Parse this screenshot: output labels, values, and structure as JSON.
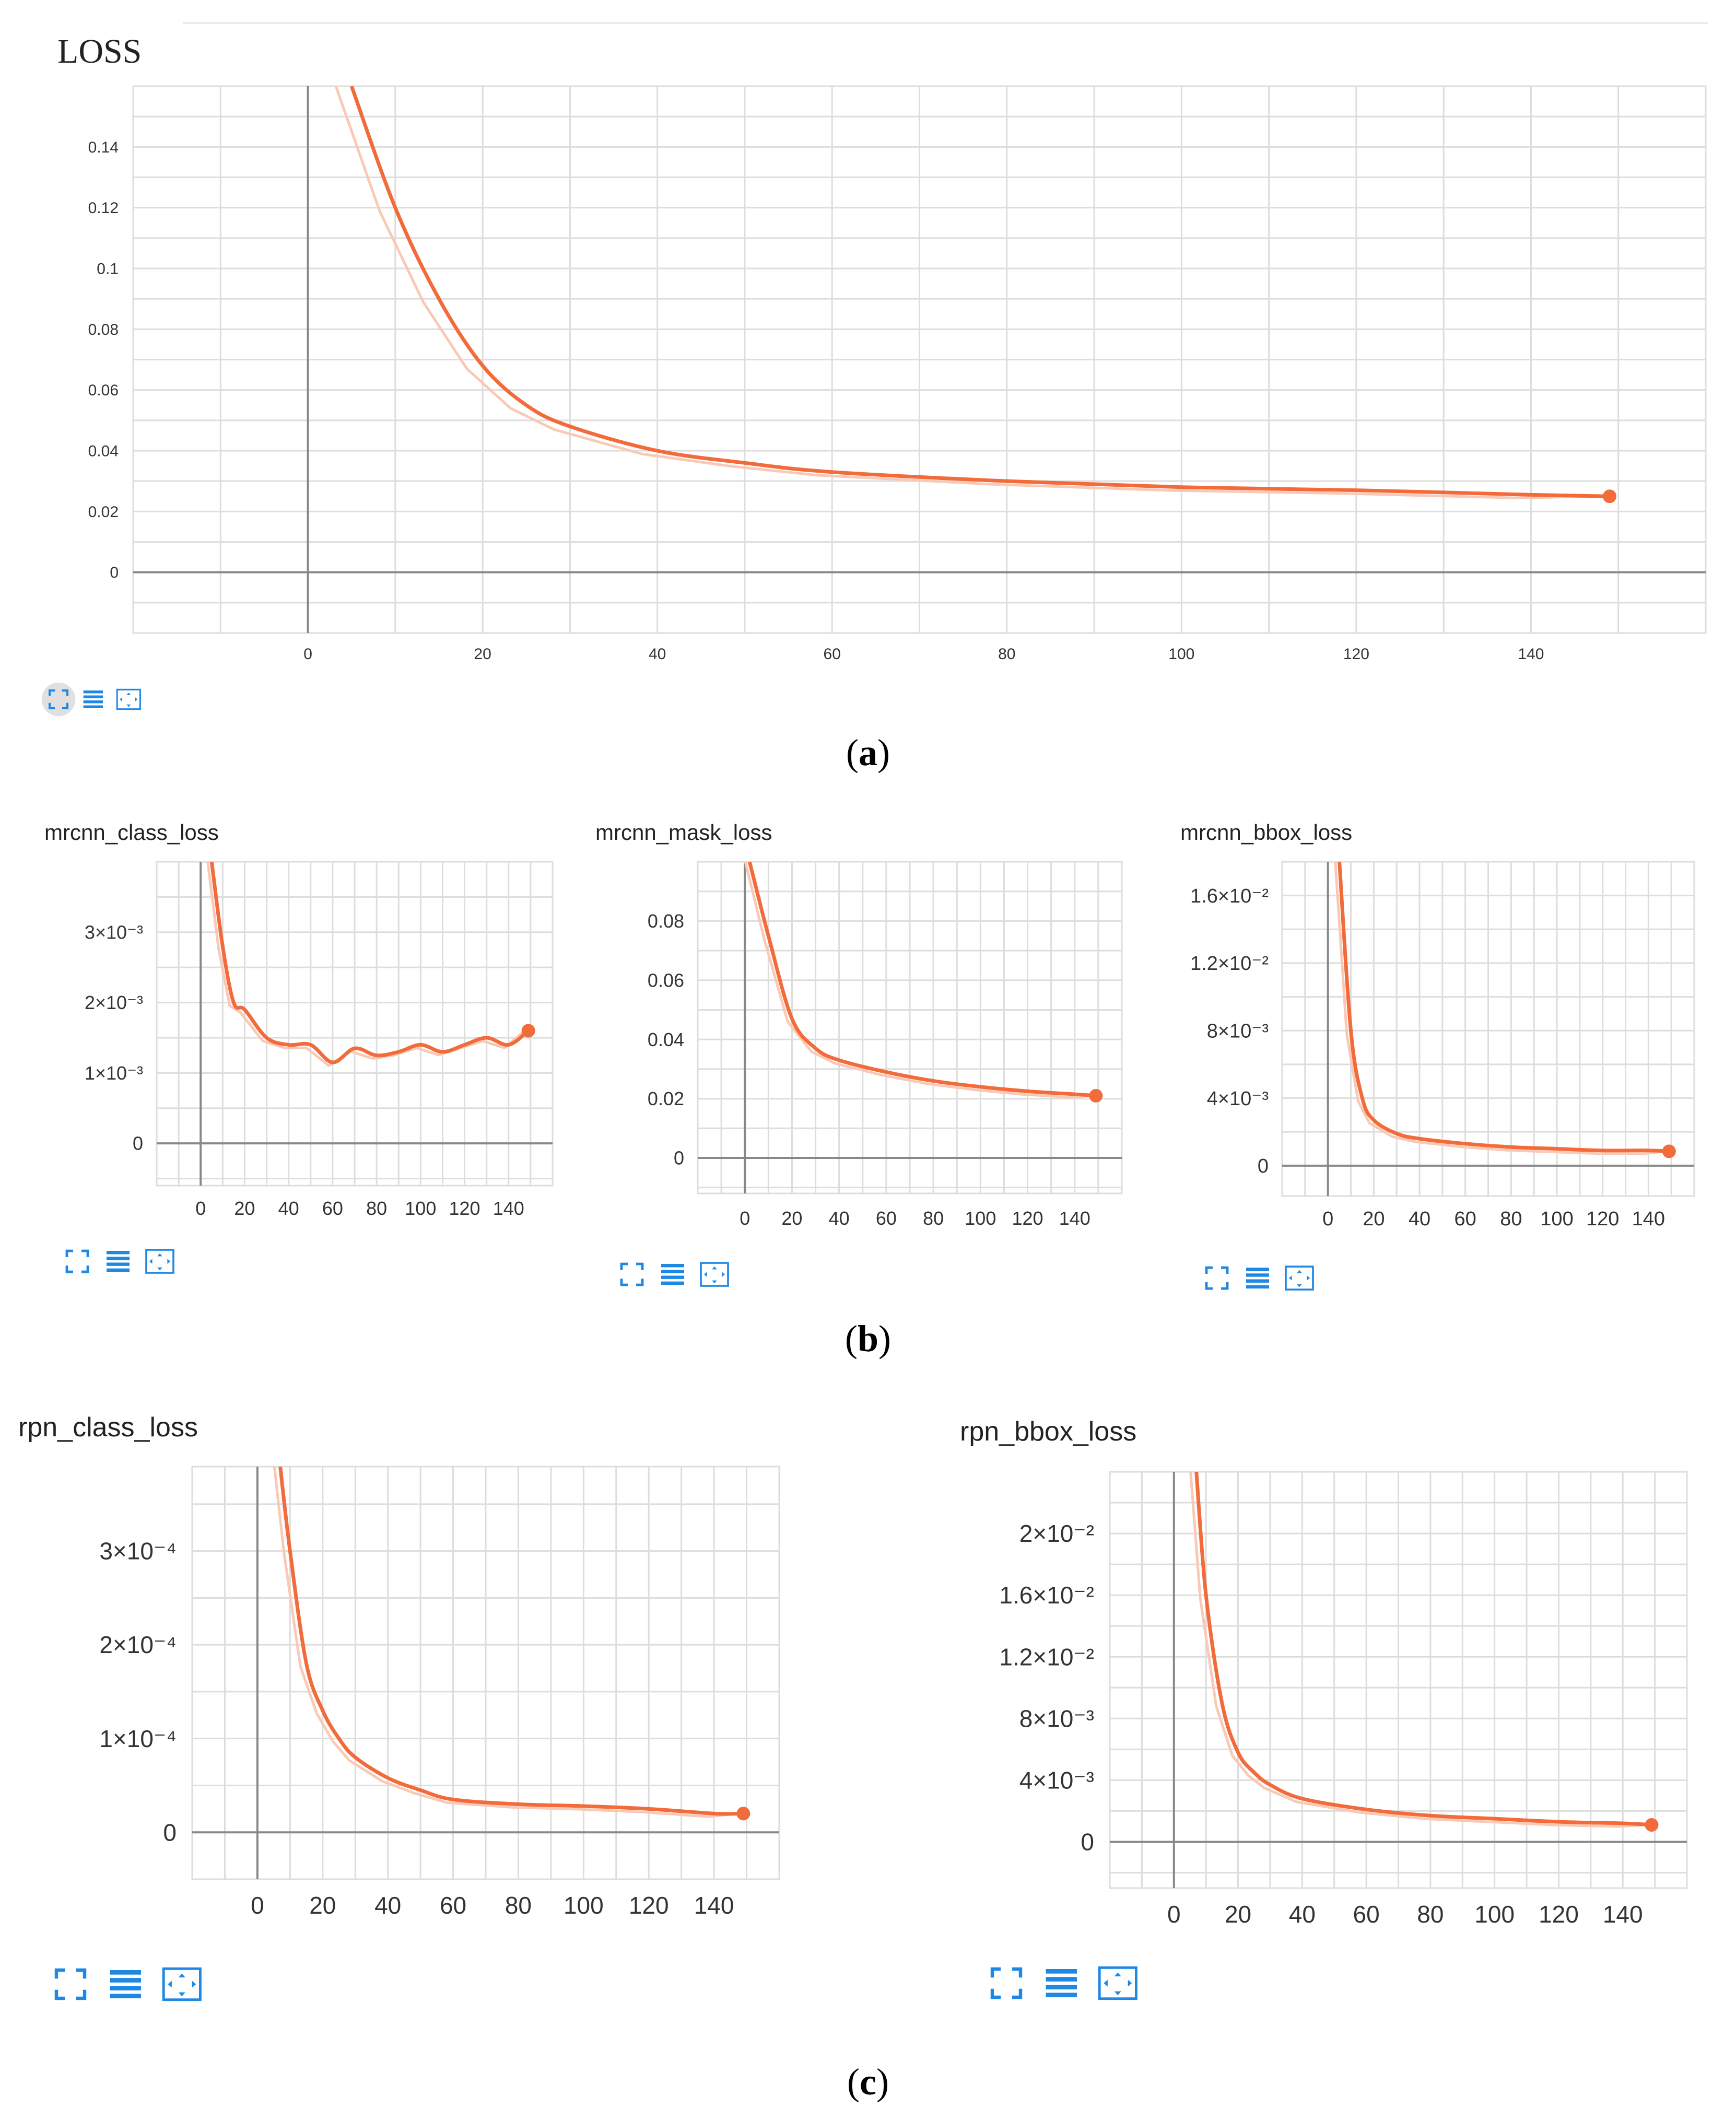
{
  "captions": {
    "a": "a",
    "b": "b",
    "c": "c"
  },
  "colors": {
    "line": "#f26b3a",
    "raw": "#f9c9b5",
    "grid": "#dddddd",
    "axis": "#888888",
    "icon": "#1e88e5"
  },
  "toolbar": {
    "icons": [
      "fit-domain-icon",
      "data-list-icon",
      "toggle-y-log-icon"
    ]
  },
  "chart_data": [
    {
      "id": "a",
      "type": "line",
      "title": "LOSS",
      "xlabel": "",
      "ylabel": "",
      "xlim": [
        -20,
        160
      ],
      "ylim": [
        -0.02,
        0.16
      ],
      "xticks": [
        0,
        20,
        40,
        60,
        80,
        100,
        120,
        140
      ],
      "yticks": [
        0,
        0.02,
        0.04,
        0.06,
        0.08,
        0.1,
        0.12,
        0.14
      ],
      "ytick_labels": [
        "0",
        "0.02",
        "0.04",
        "0.06",
        "0.08",
        "0.1",
        "0.12",
        "0.14"
      ],
      "series": [
        {
          "name": "smoothed",
          "x": [
            5,
            10,
            15,
            20,
            25,
            30,
            40,
            50,
            60,
            80,
            100,
            120,
            140,
            149
          ],
          "y": [
            0.16,
            0.12,
            0.09,
            0.068,
            0.055,
            0.048,
            0.04,
            0.036,
            0.033,
            0.03,
            0.028,
            0.027,
            0.0255,
            0.025
          ]
        }
      ]
    },
    {
      "id": "b1",
      "type": "line",
      "title": "mrcnn_class_loss",
      "xlim": [
        -20,
        160
      ],
      "ylim": [
        -0.0006,
        0.004
      ],
      "xticks": [
        0,
        20,
        40,
        60,
        80,
        100,
        120,
        140
      ],
      "yticks": [
        0,
        0.001,
        0.002,
        0.003
      ],
      "ytick_labels": [
        "0",
        "1×10⁻³",
        "2×10⁻³",
        "3×10⁻³"
      ],
      "series": [
        {
          "name": "smoothed",
          "x": [
            5,
            10,
            15,
            20,
            30,
            40,
            50,
            60,
            70,
            80,
            90,
            100,
            110,
            120,
            130,
            140,
            149
          ],
          "y": [
            0.004,
            0.0028,
            0.002,
            0.0019,
            0.0015,
            0.0014,
            0.0014,
            0.00115,
            0.00135,
            0.00125,
            0.0013,
            0.0014,
            0.0013,
            0.0014,
            0.0015,
            0.0014,
            0.0016
          ]
        }
      ]
    },
    {
      "id": "b2",
      "type": "line",
      "title": "mrcnn_mask_loss",
      "xlim": [
        -20,
        160
      ],
      "ylim": [
        -0.012,
        0.1
      ],
      "xticks": [
        0,
        20,
        40,
        60,
        80,
        100,
        120,
        140
      ],
      "yticks": [
        0,
        0.02,
        0.04,
        0.06,
        0.08
      ],
      "ytick_labels": [
        "0",
        "0.02",
        "0.04",
        "0.06",
        "0.08"
      ],
      "series": [
        {
          "name": "smoothed",
          "x": [
            2,
            10,
            20,
            30,
            40,
            60,
            80,
            100,
            120,
            140,
            149
          ],
          "y": [
            0.1,
            0.075,
            0.047,
            0.037,
            0.033,
            0.029,
            0.026,
            0.024,
            0.0225,
            0.0215,
            0.021
          ]
        }
      ]
    },
    {
      "id": "b3",
      "type": "line",
      "title": "mrcnn_bbox_loss",
      "xlim": [
        -20,
        160
      ],
      "ylim": [
        -0.0018,
        0.018
      ],
      "xticks": [
        0,
        20,
        40,
        60,
        80,
        100,
        120,
        140
      ],
      "yticks": [
        0,
        0.004,
        0.008,
        0.012,
        0.016
      ],
      "ytick_labels": [
        "0",
        "4×10⁻³",
        "8×10⁻³",
        "1.2×10⁻²",
        "1.6×10⁻²"
      ],
      "series": [
        {
          "name": "smoothed",
          "x": [
            5,
            10,
            15,
            20,
            30,
            40,
            60,
            80,
            100,
            120,
            140,
            149
          ],
          "y": [
            0.018,
            0.008,
            0.004,
            0.0027,
            0.0019,
            0.0016,
            0.0013,
            0.0011,
            0.001,
            0.0009,
            0.0009,
            0.00085
          ]
        }
      ]
    },
    {
      "id": "c1",
      "type": "line",
      "title": "rpn_class_loss",
      "xlim": [
        -20,
        160
      ],
      "ylim": [
        -5e-05,
        0.00039
      ],
      "xticks": [
        0,
        20,
        40,
        60,
        80,
        100,
        120,
        140
      ],
      "yticks": [
        0,
        0.0001,
        0.0002,
        0.0003
      ],
      "ytick_labels": [
        "0",
        "1×10⁻⁴",
        "2×10⁻⁴",
        "3×10⁻⁴"
      ],
      "series": [
        {
          "name": "smoothed",
          "x": [
            7,
            10,
            15,
            20,
            25,
            30,
            40,
            50,
            60,
            80,
            100,
            120,
            140,
            149
          ],
          "y": [
            0.00039,
            0.0003,
            0.00018,
            0.00013,
            0.0001,
            8e-05,
            5.8e-05,
            4.5e-05,
            3.5e-05,
            3e-05,
            2.8e-05,
            2.5e-05,
            2e-05,
            2e-05
          ]
        }
      ]
    },
    {
      "id": "c2",
      "type": "line",
      "title": "rpn_bbox_loss",
      "xlim": [
        -20,
        160
      ],
      "ylim": [
        -0.003,
        0.024
      ],
      "xticks": [
        0,
        20,
        40,
        60,
        80,
        100,
        120,
        140
      ],
      "yticks": [
        0,
        0.004,
        0.008,
        0.012,
        0.016,
        0.02
      ],
      "ytick_labels": [
        "0",
        "4×10⁻³",
        "8×10⁻³",
        "1.2×10⁻²",
        "1.6×10⁻²",
        "2×10⁻²"
      ],
      "series": [
        {
          "name": "smoothed",
          "x": [
            7,
            10,
            15,
            20,
            25,
            30,
            40,
            60,
            80,
            100,
            120,
            140,
            149
          ],
          "y": [
            0.024,
            0.016,
            0.009,
            0.0058,
            0.0045,
            0.0037,
            0.0028,
            0.0021,
            0.0017,
            0.0015,
            0.0013,
            0.0012,
            0.0011
          ]
        }
      ]
    }
  ]
}
